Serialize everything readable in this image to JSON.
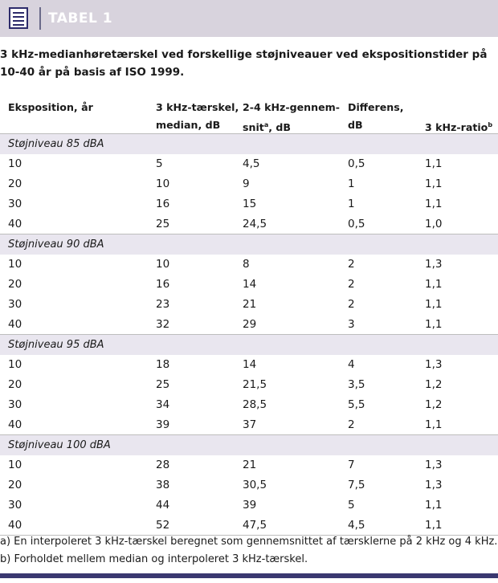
{
  "header": {
    "title": "TABEL 1"
  },
  "caption": "3 kHz-medianhøretærskel ved forskellige støjniveauer ved ekspositionstider på 10-40 år på basis af ISO 1999.",
  "columns": {
    "c1": [
      "",
      "Eksposition, år"
    ],
    "c2": [
      "3 kHz-tærskel,",
      "median, dB"
    ],
    "c3": [
      "2-4 kHz-gennem-",
      "snit",
      "a",
      ", dB"
    ],
    "c4": [
      "Differens,",
      "dB"
    ],
    "c5": [
      "3 kHz-ratio",
      "b"
    ]
  },
  "groups": [
    {
      "label": "Støjniveau 85 dBA",
      "rows": [
        [
          "10",
          "5",
          "4,5",
          "0,5",
          "1,1"
        ],
        [
          "20",
          "10",
          "9",
          "1",
          "1,1"
        ],
        [
          "30",
          "16",
          "15",
          "1",
          "1,1"
        ],
        [
          "40",
          "25",
          "24,5",
          "0,5",
          "1,0"
        ]
      ]
    },
    {
      "label": "Støjniveau 90 dBA",
      "rows": [
        [
          "10",
          "10",
          "8",
          "2",
          "1,3"
        ],
        [
          "20",
          "16",
          "14",
          "2",
          "1,1"
        ],
        [
          "30",
          "23",
          "21",
          "2",
          "1,1"
        ],
        [
          "40",
          "32",
          "29",
          "3",
          "1,1"
        ]
      ]
    },
    {
      "label": "Støjniveau 95 dBA",
      "rows": [
        [
          "10",
          "18",
          "14",
          "4",
          "1,3"
        ],
        [
          "20",
          "25",
          "21,5",
          "3,5",
          "1,2"
        ],
        [
          "30",
          "34",
          "28,5",
          "5,5",
          "1,2"
        ],
        [
          "40",
          "39",
          "37",
          "2",
          "1,1"
        ]
      ]
    },
    {
      "label": "Støjniveau 100 dBA",
      "rows": [
        [
          "10",
          "28",
          "21",
          "7",
          "1,3"
        ],
        [
          "20",
          "38",
          "30,5",
          "7,5",
          "1,3"
        ],
        [
          "30",
          "44",
          "39",
          "5",
          "1,1"
        ],
        [
          "40",
          "52",
          "47,5",
          "4,5",
          "1,1"
        ]
      ]
    }
  ],
  "footnotes": [
    "a) En interpoleret 3 kHz-tærskel beregnet som gennemsnittet af tærsklerne på 2 kHz og 4 kHz.",
    "b) Forholdet mellem median og interpoleret 3 kHz-tærskel."
  ]
}
